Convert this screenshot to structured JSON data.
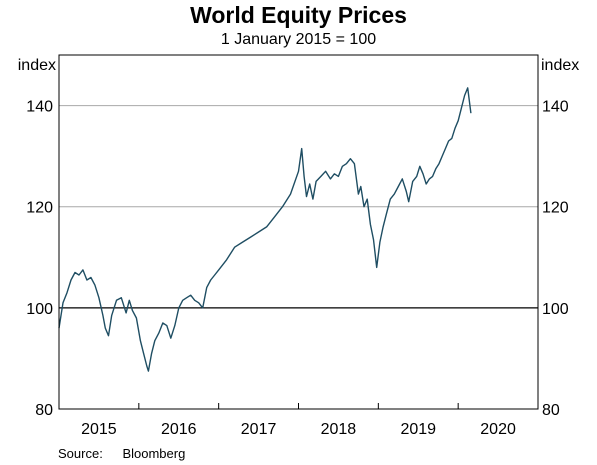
{
  "chart_data": {
    "type": "line",
    "title": "World Equity Prices",
    "subtitle": "1 January 2015 = 100",
    "ylabel_left": "index",
    "ylabel_right": "index",
    "ylim": [
      80,
      150
    ],
    "yticks": [
      80,
      100,
      120,
      140
    ],
    "ytick_labels": [
      "80",
      "100",
      "120",
      "140"
    ],
    "xlim": [
      2015.0,
      2021.0
    ],
    "xtick_labels": [
      "2015",
      "2016",
      "2017",
      "2018",
      "2019",
      "2020"
    ],
    "grid": true,
    "reference_line": 100,
    "line_color": "#1f4e63",
    "series": [
      {
        "points": [
          [
            2015.0,
            96.0
          ],
          [
            2015.05,
            101.0
          ],
          [
            2015.1,
            103.0
          ],
          [
            2015.15,
            105.5
          ],
          [
            2015.2,
            107.0
          ],
          [
            2015.25,
            106.5
          ],
          [
            2015.3,
            107.5
          ],
          [
            2015.35,
            105.5
          ],
          [
            2015.4,
            106.0
          ],
          [
            2015.45,
            104.5
          ],
          [
            2015.5,
            102.0
          ],
          [
            2015.55,
            98.5
          ],
          [
            2015.58,
            96.0
          ],
          [
            2015.62,
            94.5
          ],
          [
            2015.66,
            98.5
          ],
          [
            2015.72,
            101.5
          ],
          [
            2015.78,
            102.0
          ],
          [
            2015.84,
            99.0
          ],
          [
            2015.88,
            101.5
          ],
          [
            2015.92,
            99.5
          ],
          [
            2015.97,
            98.0
          ],
          [
            2016.02,
            93.5
          ],
          [
            2016.06,
            91.0
          ],
          [
            2016.1,
            88.5
          ],
          [
            2016.12,
            87.5
          ],
          [
            2016.16,
            91.0
          ],
          [
            2016.2,
            93.5
          ],
          [
            2016.25,
            95.0
          ],
          [
            2016.3,
            97.0
          ],
          [
            2016.35,
            96.5
          ],
          [
            2016.4,
            94.0
          ],
          [
            2016.45,
            96.5
          ],
          [
            2016.5,
            100.0
          ],
          [
            2016.55,
            101.5
          ],
          [
            2016.6,
            102.0
          ],
          [
            2016.65,
            102.5
          ],
          [
            2016.7,
            101.5
          ],
          [
            2016.75,
            101.0
          ],
          [
            2016.8,
            100.0
          ],
          [
            2016.85,
            104.0
          ],
          [
            2016.9,
            105.5
          ],
          [
            2016.95,
            106.5
          ],
          [
            2017.0,
            107.5
          ],
          [
            2017.1,
            109.5
          ],
          [
            2017.2,
            112.0
          ],
          [
            2017.3,
            113.0
          ],
          [
            2017.4,
            114.0
          ],
          [
            2017.5,
            115.0
          ],
          [
            2017.6,
            116.0
          ],
          [
            2017.7,
            118.0
          ],
          [
            2017.8,
            120.0
          ],
          [
            2017.9,
            122.5
          ],
          [
            2018.0,
            127.0
          ],
          [
            2018.04,
            131.5
          ],
          [
            2018.07,
            126.0
          ],
          [
            2018.1,
            122.0
          ],
          [
            2018.14,
            124.5
          ],
          [
            2018.18,
            121.5
          ],
          [
            2018.22,
            125.0
          ],
          [
            2018.28,
            126.0
          ],
          [
            2018.34,
            127.0
          ],
          [
            2018.4,
            125.5
          ],
          [
            2018.45,
            126.5
          ],
          [
            2018.5,
            126.0
          ],
          [
            2018.55,
            128.0
          ],
          [
            2018.6,
            128.5
          ],
          [
            2018.65,
            129.5
          ],
          [
            2018.7,
            128.5
          ],
          [
            2018.75,
            122.5
          ],
          [
            2018.78,
            124.0
          ],
          [
            2018.82,
            120.0
          ],
          [
            2018.86,
            121.5
          ],
          [
            2018.9,
            116.5
          ],
          [
            2018.94,
            113.5
          ],
          [
            2018.98,
            108.0
          ],
          [
            2019.02,
            113.0
          ],
          [
            2019.06,
            116.0
          ],
          [
            2019.1,
            118.5
          ],
          [
            2019.15,
            121.5
          ],
          [
            2019.2,
            122.5
          ],
          [
            2019.25,
            124.0
          ],
          [
            2019.3,
            125.5
          ],
          [
            2019.35,
            123.0
          ],
          [
            2019.38,
            121.0
          ],
          [
            2019.43,
            125.0
          ],
          [
            2019.48,
            126.0
          ],
          [
            2019.52,
            128.0
          ],
          [
            2019.56,
            126.5
          ],
          [
            2019.6,
            124.5
          ],
          [
            2019.64,
            125.5
          ],
          [
            2019.68,
            126.0
          ],
          [
            2019.72,
            127.5
          ],
          [
            2019.76,
            128.5
          ],
          [
            2019.8,
            130.0
          ],
          [
            2019.84,
            131.5
          ],
          [
            2019.88,
            133.0
          ],
          [
            2019.92,
            133.5
          ],
          [
            2019.96,
            135.5
          ],
          [
            2020.0,
            137.0
          ],
          [
            2020.04,
            139.5
          ],
          [
            2020.08,
            142.0
          ],
          [
            2020.12,
            143.5
          ],
          [
            2020.16,
            138.5
          ]
        ]
      }
    ]
  },
  "source": {
    "label": "Source:",
    "value": "Bloomberg"
  }
}
